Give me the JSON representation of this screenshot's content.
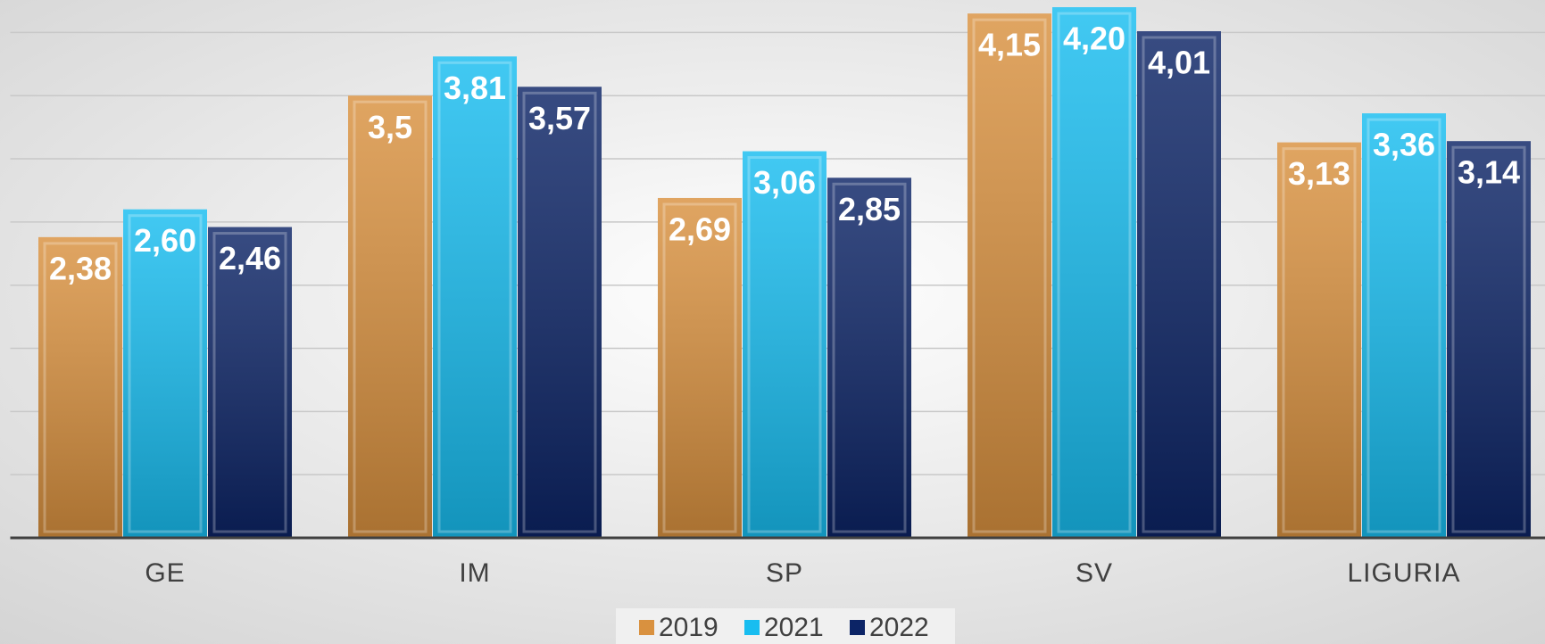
{
  "chart_data": {
    "type": "bar",
    "categories": [
      "GE",
      "IM",
      "SP",
      "SV",
      "LIGURIA"
    ],
    "series": [
      {
        "name": "2019",
        "color": "#d9913f",
        "values": [
          2.38,
          3.5,
          2.69,
          4.15,
          3.13
        ],
        "value_labels": [
          "2,38",
          "3,5",
          "2,69",
          "4,15",
          "3,13"
        ]
      },
      {
        "name": "2021",
        "color": "#18bdf0",
        "values": [
          2.6,
          3.81,
          3.06,
          4.2,
          3.36
        ],
        "value_labels": [
          "2,60",
          "3,81",
          "3,06",
          "4,20",
          "3,36"
        ]
      },
      {
        "name": "2022",
        "color": "#0c2466",
        "values": [
          2.46,
          3.57,
          2.85,
          4.01,
          3.14
        ],
        "value_labels": [
          "2,46",
          "3,57",
          "2,85",
          "4,01",
          "3,14"
        ]
      }
    ],
    "ylim": [
      0,
      4.25
    ],
    "yticks": [
      0,
      0.5,
      1,
      1.5,
      2,
      2.5,
      3,
      3.5,
      4
    ],
    "grid": true
  }
}
